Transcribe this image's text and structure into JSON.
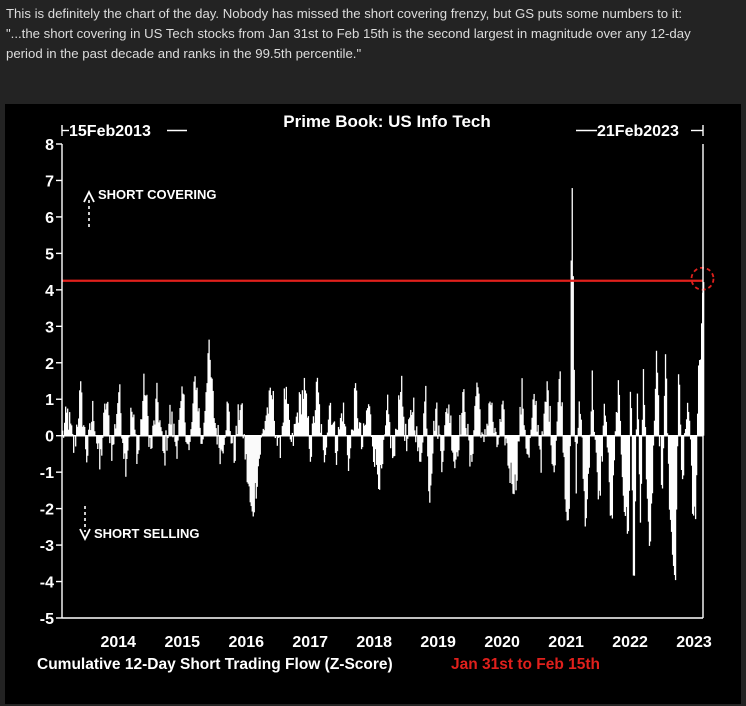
{
  "intro": {
    "line1": "This is definitely the chart of the day. Nobody has missed the short covering frenzy, but GS puts some numbers to it:",
    "line2": "\"...the short covering in US Tech stocks from Jan 31st to Feb 15th is the second largest in magnitude over any 12-day",
    "line3": "period in the past decade and ranks in the 99.5th percentile.\""
  },
  "colors": {
    "background": "#232323",
    "chart_background": "#000000",
    "bars": "#ffffff",
    "highlight": "#e0201c",
    "text": "#dcdcdc"
  },
  "chart_data": {
    "type": "bar",
    "title": "Prime Book: US Info Tech",
    "xlabel": "Cumulative 12-Day Short Trading Flow (Z-Score)",
    "xlabel_highlight": "Jan 31st to Feb 15th",
    "ylim": [
      -5,
      8
    ],
    "yticks": [
      8,
      7,
      6,
      5,
      4,
      3,
      2,
      1,
      0,
      -1,
      -2,
      -3,
      -4,
      -5
    ],
    "xticks": [
      "2014",
      "2015",
      "2016",
      "2017",
      "2018",
      "2019",
      "2020",
      "2021",
      "2022",
      "2023"
    ],
    "x_range": [
      "15Feb2013",
      "21Feb2023"
    ],
    "start_marker": "15Feb2013",
    "end_marker": "21Feb2023",
    "reference_line": {
      "y": 4.25,
      "color": "#e0201c"
    },
    "annotations": [
      {
        "text": "SHORT COVERING",
        "arrow": "up"
      },
      {
        "text": "SHORT SELLING",
        "arrow": "down"
      }
    ],
    "keypoints": [
      [
        2013.12,
        0.0
      ],
      [
        2013.2,
        0.6
      ],
      [
        2013.3,
        -0.4
      ],
      [
        2013.4,
        1.2
      ],
      [
        2013.5,
        -0.6
      ],
      [
        2013.6,
        0.8
      ],
      [
        2013.7,
        -0.9
      ],
      [
        2013.8,
        1.0
      ],
      [
        2013.9,
        -0.5
      ],
      [
        2014.0,
        1.3
      ],
      [
        2014.1,
        -0.8
      ],
      [
        2014.2,
        0.7
      ],
      [
        2014.3,
        -0.6
      ],
      [
        2014.4,
        1.5
      ],
      [
        2014.5,
        -0.5
      ],
      [
        2014.6,
        1.1
      ],
      [
        2014.7,
        -0.7
      ],
      [
        2014.8,
        0.6
      ],
      [
        2014.9,
        -0.3
      ],
      [
        2015.0,
        1.1
      ],
      [
        2015.1,
        -0.6
      ],
      [
        2015.2,
        1.7
      ],
      [
        2015.3,
        -0.4
      ],
      [
        2015.4,
        2.4
      ],
      [
        2015.5,
        0.4
      ],
      [
        2015.6,
        -0.5
      ],
      [
        2015.7,
        0.8
      ],
      [
        2015.8,
        -0.6
      ],
      [
        2015.9,
        1.0
      ],
      [
        2016.0,
        -1.0
      ],
      [
        2016.08,
        -2.3
      ],
      [
        2016.2,
        -0.5
      ],
      [
        2016.3,
        0.6
      ],
      [
        2016.4,
        1.1
      ],
      [
        2016.5,
        -0.6
      ],
      [
        2016.6,
        1.2
      ],
      [
        2016.7,
        -0.4
      ],
      [
        2016.8,
        0.7
      ],
      [
        2016.9,
        1.3
      ],
      [
        2017.0,
        -0.5
      ],
      [
        2017.1,
        1.4
      ],
      [
        2017.2,
        -0.7
      ],
      [
        2017.3,
        1.0
      ],
      [
        2017.4,
        -0.4
      ],
      [
        2017.5,
        0.8
      ],
      [
        2017.6,
        -0.8
      ],
      [
        2017.7,
        1.2
      ],
      [
        2017.8,
        -0.4
      ],
      [
        2017.9,
        0.9
      ],
      [
        2018.0,
        -0.6
      ],
      [
        2018.1,
        -1.3
      ],
      [
        2018.2,
        0.7
      ],
      [
        2018.3,
        -0.8
      ],
      [
        2018.4,
        1.6
      ],
      [
        2018.5,
        -0.4
      ],
      [
        2018.6,
        1.0
      ],
      [
        2018.7,
        -0.9
      ],
      [
        2018.8,
        1.3
      ],
      [
        2018.85,
        -1.7
      ],
      [
        2018.95,
        0.8
      ],
      [
        2019.05,
        -0.6
      ],
      [
        2019.15,
        1.0
      ],
      [
        2019.25,
        -0.8
      ],
      [
        2019.4,
        1.1
      ],
      [
        2019.5,
        -1.0
      ],
      [
        2019.6,
        1.6
      ],
      [
        2019.7,
        -0.5
      ],
      [
        2019.8,
        1.1
      ],
      [
        2019.9,
        -0.4
      ],
      [
        2020.0,
        0.6
      ],
      [
        2020.1,
        -0.9
      ],
      [
        2020.2,
        -1.4
      ],
      [
        2020.3,
        1.2
      ],
      [
        2020.4,
        -0.8
      ],
      [
        2020.5,
        1.1
      ],
      [
        2020.6,
        -0.6
      ],
      [
        2020.7,
        1.4
      ],
      [
        2020.8,
        -1.0
      ],
      [
        2020.9,
        1.8
      ],
      [
        2021.0,
        -2.3
      ],
      [
        2021.05,
        -1.5
      ],
      [
        2021.08,
        7.7
      ],
      [
        2021.1,
        4.5
      ],
      [
        2021.14,
        -1.6
      ],
      [
        2021.2,
        1.2
      ],
      [
        2021.3,
        -2.6
      ],
      [
        2021.4,
        1.5
      ],
      [
        2021.5,
        -2.1
      ],
      [
        2021.6,
        1.0
      ],
      [
        2021.7,
        -2.6
      ],
      [
        2021.8,
        1.4
      ],
      [
        2021.9,
        -1.8
      ],
      [
        2021.97,
        -2.9
      ],
      [
        2022.0,
        2.2
      ],
      [
        2022.05,
        -4.9
      ],
      [
        2022.1,
        1.8
      ],
      [
        2022.15,
        -2.4
      ],
      [
        2022.2,
        1.6
      ],
      [
        2022.3,
        -3.5
      ],
      [
        2022.4,
        2.0
      ],
      [
        2022.5,
        -1.7
      ],
      [
        2022.55,
        2.6
      ],
      [
        2022.6,
        -2.0
      ],
      [
        2022.7,
        -4.2
      ],
      [
        2022.75,
        2.0
      ],
      [
        2022.8,
        -1.5
      ],
      [
        2022.9,
        1.2
      ],
      [
        2022.98,
        -2.5
      ],
      [
        2023.02,
        -1.8
      ],
      [
        2023.06,
        1.8
      ],
      [
        2023.1,
        2.6
      ],
      [
        2023.13,
        4.25
      ]
    ]
  }
}
